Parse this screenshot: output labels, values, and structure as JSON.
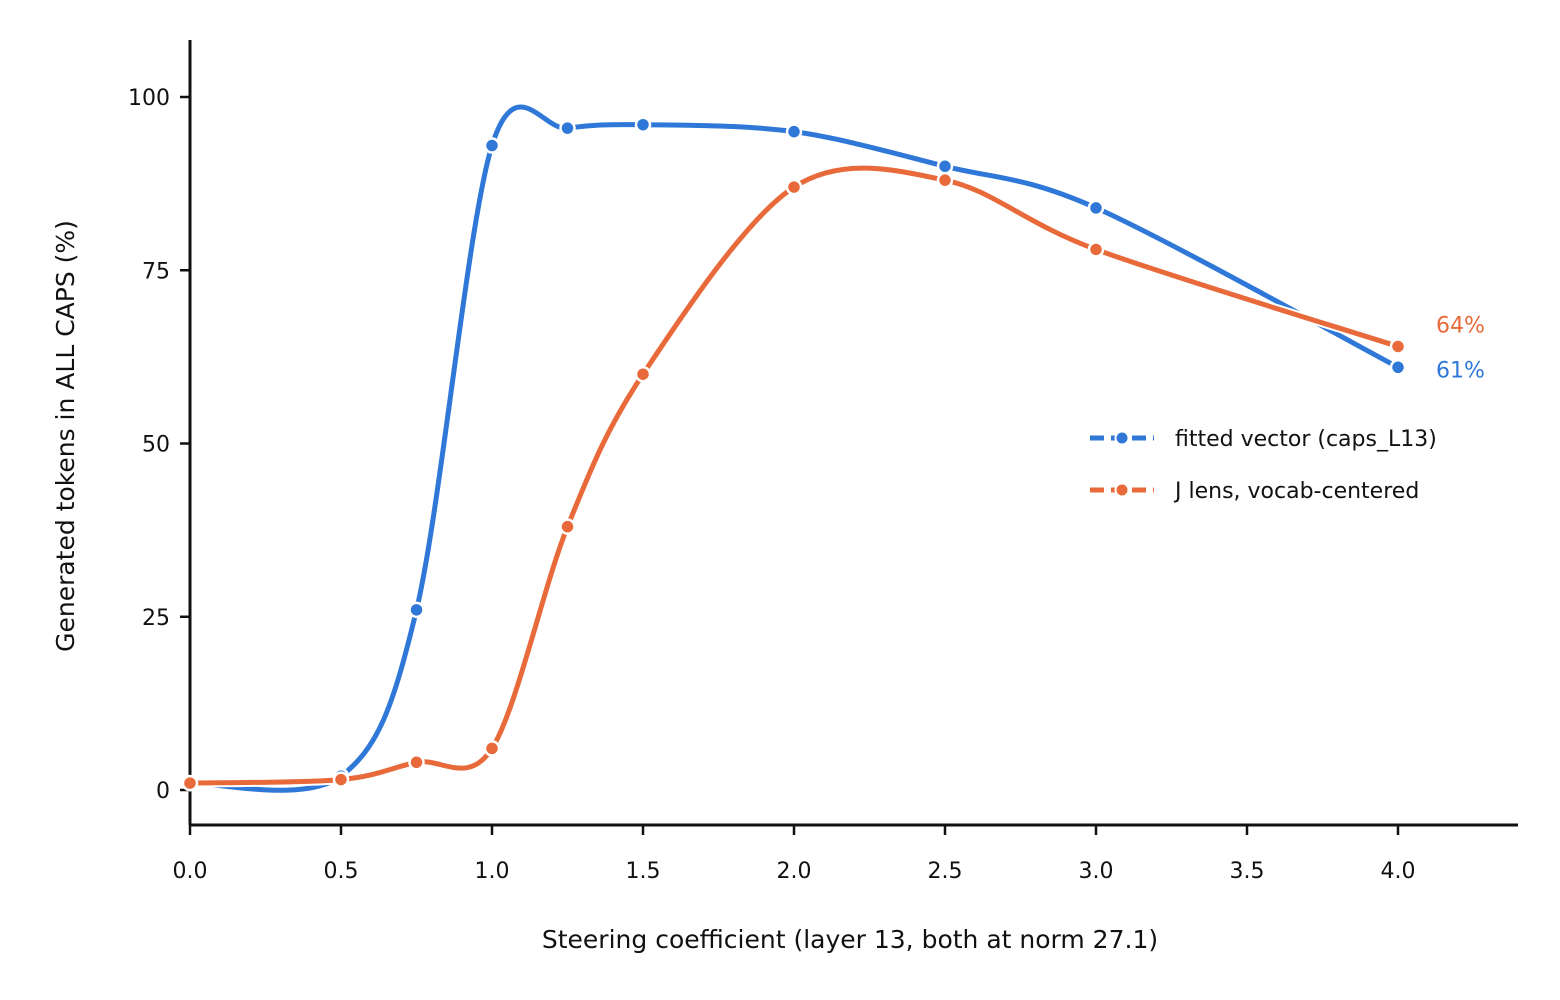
{
  "chart_data": {
    "type": "line",
    "xlabel": "Steering coefficient  (layer 13, both at norm 27.1)",
    "ylabel": "Generated tokens in ALL CAPS (%)",
    "xlim": [
      0.0,
      4.4
    ],
    "ylim": [
      -5,
      108
    ],
    "xticks": [
      "0.0",
      "0.5",
      "1.0",
      "1.5",
      "2.0",
      "2.5",
      "3.0",
      "3.5",
      "4.0"
    ],
    "yticks": [
      "0",
      "25",
      "50",
      "75",
      "100"
    ],
    "grid": false,
    "legend_position": "center-right",
    "series": [
      {
        "name": "fitted vector (caps_L13)",
        "color": "#2f78d8",
        "x": [
          0.0,
          0.5,
          0.75,
          1.0,
          1.25,
          1.5,
          2.0,
          2.5,
          3.0,
          4.0
        ],
        "y": [
          1,
          2,
          26,
          93,
          95.5,
          96,
          95,
          90,
          84,
          61
        ],
        "end_label": "61%"
      },
      {
        "name": "J lens, vocab-centered",
        "color": "#e86a3a",
        "x": [
          0.0,
          0.5,
          0.75,
          1.0,
          1.25,
          1.5,
          2.0,
          2.5,
          3.0,
          4.0
        ],
        "y": [
          1,
          1.5,
          4,
          6,
          38,
          60,
          87,
          88,
          78,
          64
        ],
        "end_label": "64%"
      }
    ]
  }
}
